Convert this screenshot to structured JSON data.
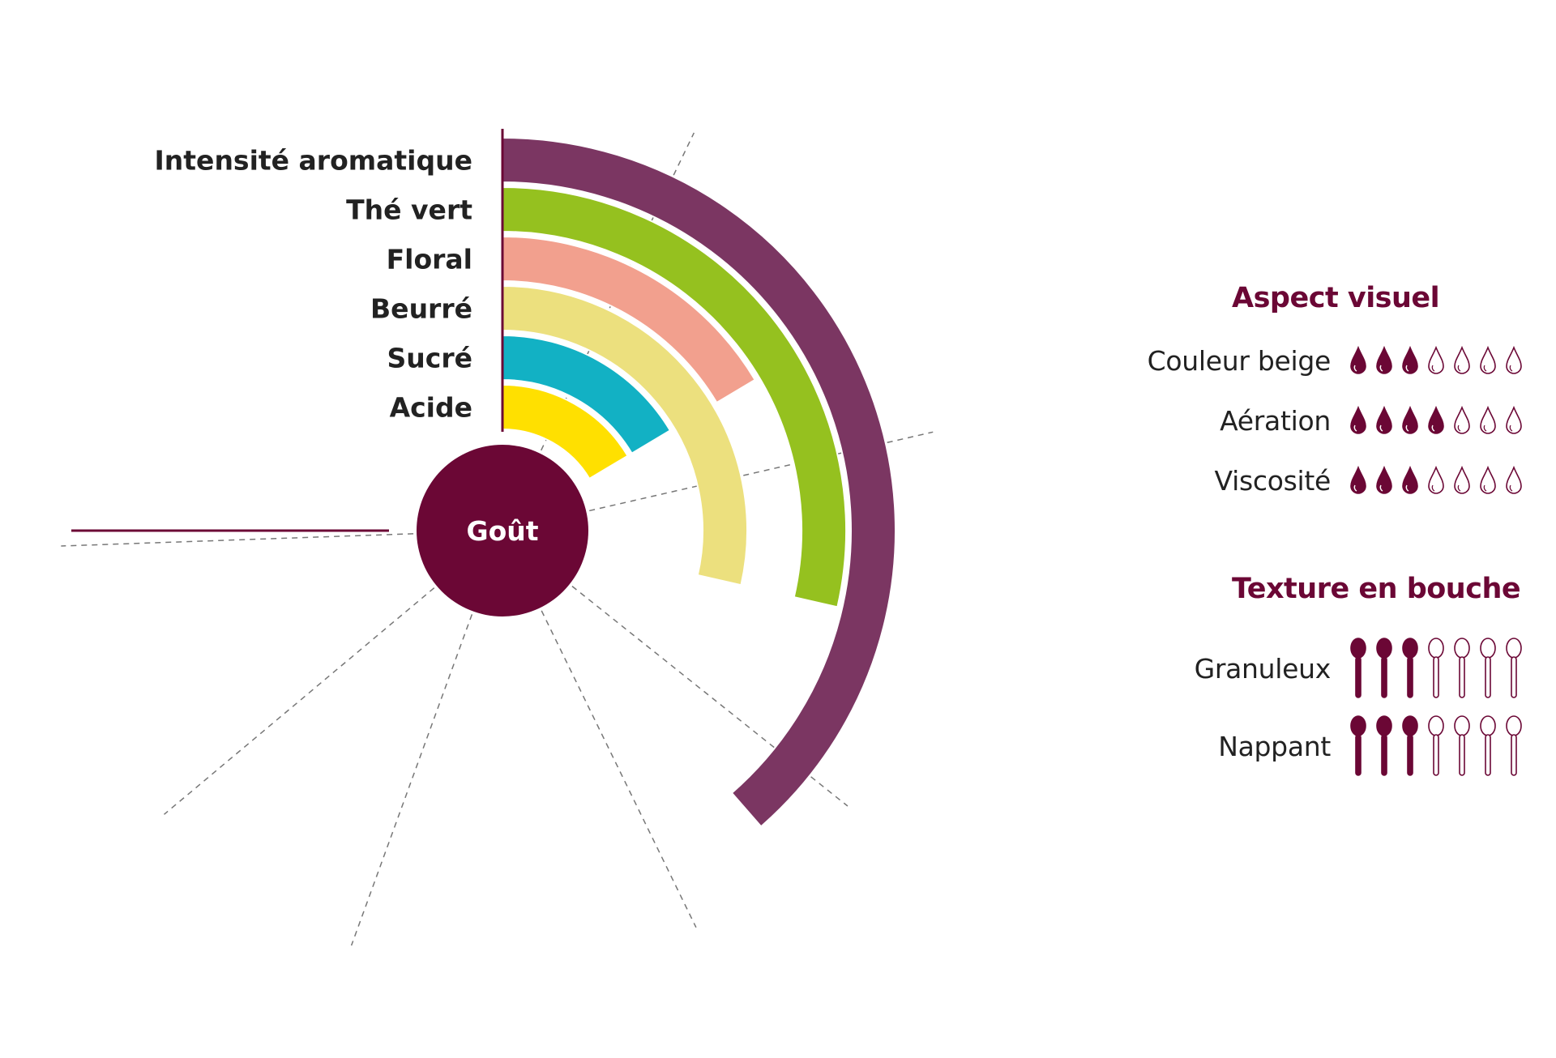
{
  "chart_data": {
    "type": "radial-bar",
    "center_label": "Goût",
    "scale_max": 7,
    "series": [
      {
        "name": "Intensité aromatique",
        "value": 5.4,
        "color": "#7b3662"
      },
      {
        "name": "Thé vert",
        "value": 4,
        "color": "#95c11f"
      },
      {
        "name": "Floral",
        "value": 2.3,
        "color": "#f2a08e"
      },
      {
        "name": "Beurré",
        "value": 4,
        "color": "#ece07e"
      },
      {
        "name": "Sucré",
        "value": 2.3,
        "color": "#12b1c4"
      },
      {
        "name": "Acide",
        "value": 2.3,
        "color": "#ffe000"
      }
    ],
    "colors": {
      "center": "#6b0735",
      "axis": "#6b0735",
      "grid": "#777777"
    }
  },
  "aspect_visuel": {
    "title": "Aspect visuel",
    "icon": "drop-icon",
    "max": 7,
    "items": [
      {
        "label": "Couleur beige",
        "value": 3
      },
      {
        "label": "Aération",
        "value": 4
      },
      {
        "label": "Viscosité",
        "value": 3
      }
    ]
  },
  "texture_en_bouche": {
    "title": "Texture en bouche",
    "icon": "spoon-icon",
    "max": 7,
    "items": [
      {
        "label": "Granuleux",
        "value": 3
      },
      {
        "label": "Nappant",
        "value": 3
      }
    ]
  },
  "accent_color": "#6b0735"
}
